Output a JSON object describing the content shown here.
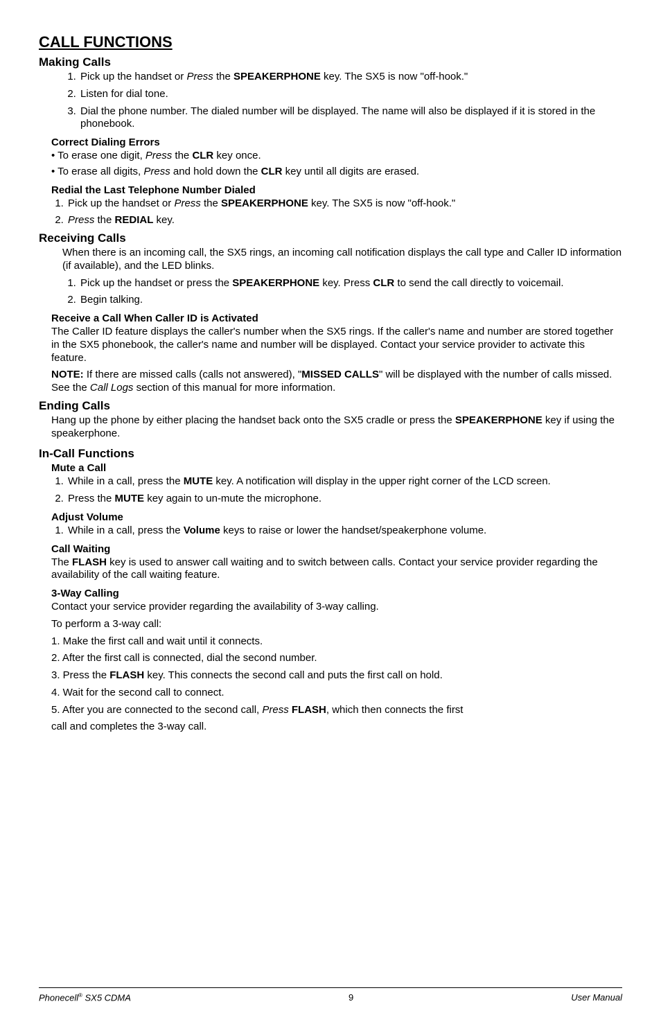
{
  "title": "CALL FUNCTIONS",
  "sections": {
    "making_calls": {
      "heading": "Making Calls",
      "steps": [
        "Pick up the handset or <i>Press</i> the <b>SPEAKERPHONE</b> key. The SX5 is now \"off-hook.\"",
        "Listen for dial tone.",
        "Dial the phone number. The dialed number will be displayed. The name will also be displayed if it is stored in the phonebook."
      ],
      "correct_errors": {
        "heading": "Correct Dialing Errors",
        "bullets": [
          "To erase one digit, <i>Press</i> the <b>CLR</b> key once.",
          "To erase all digits, <i>Press</i> and hold down the <b>CLR</b> key until all digits are erased."
        ]
      },
      "redial": {
        "heading": "Redial the Last Telephone Number Dialed",
        "steps": [
          "Pick up the handset or <i>Press</i> the <b>SPEAKERPHONE</b> key. The SX5 is now \"off-hook.\"",
          "<i>Press</i> the <b>REDIAL</b> key."
        ]
      }
    },
    "receiving_calls": {
      "heading": "Receiving Calls",
      "intro": "When there is an incoming call, the SX5 rings, an incoming call notification displays the call type and Caller ID information (if available), and the LED blinks.",
      "steps": [
        "Pick up the handset or press the <b>SPEAKERPHONE</b> key. Press <b>CLR</b> to send the call directly to voicemail.",
        "Begin talking."
      ],
      "caller_id": {
        "heading": "Receive a Call When Caller ID is Activated",
        "para": "The Caller ID feature displays the caller's number when the SX5 rings. If the caller's name and number are stored together in the SX5 phonebook, the caller's name and number will be displayed. Contact your service provider to activate this feature.",
        "note": "<b>NOTE:</b> If there are missed calls (calls not answered), \"<b>MISSED CALLS</b>\" will be displayed with the number of calls missed. See the <i>Call Logs</i> section of this manual for more information."
      }
    },
    "ending_calls": {
      "heading": "Ending Calls",
      "para": "Hang up the phone by either placing the handset back onto the SX5 cradle or press the <b>SPEAKERPHONE</b> key if using the speakerphone."
    },
    "in_call": {
      "heading": "In-Call Functions",
      "mute": {
        "heading": "Mute a Call",
        "steps": [
          "While in a call, press the <b>MUTE</b> key. A notification will display in the upper right corner of the LCD screen.",
          "Press the <b>MUTE</b> key again to un-mute the microphone."
        ]
      },
      "volume": {
        "heading": "Adjust Volume",
        "steps": [
          "While in a call, press the <b>Volume</b> keys to raise or lower the handset/speakerphone volume."
        ]
      },
      "waiting": {
        "heading": "Call Waiting",
        "para": "The <b>FLASH</b> key is used to answer call waiting and to switch between calls.  Contact your service provider regarding the availability of the call waiting feature."
      },
      "threeway": {
        "heading": "3-Way Calling",
        "intro1": "Contact your service provider regarding the availability of 3-way calling.",
        "intro2": "To perform a 3-way call:",
        "steps": [
          "1. Make the first call and wait until it connects.",
          "2. After the first call is connected, dial the second number.",
          "3. Press the <b>FLASH</b> key.  This connects the second call and puts the first call on hold.",
          "4. Wait for the second call to connect.",
          "5. After you are connected to the second call, <i>Press</i> <b>FLASH</b>, which then connects the first"
        ],
        "tail": "call and completes the 3-way call."
      }
    }
  },
  "footer": {
    "left_prefix": "Phonecell",
    "left_reg": "®",
    "left_suffix": " SX5 CDMA",
    "page": "9",
    "right": "User Manual"
  }
}
